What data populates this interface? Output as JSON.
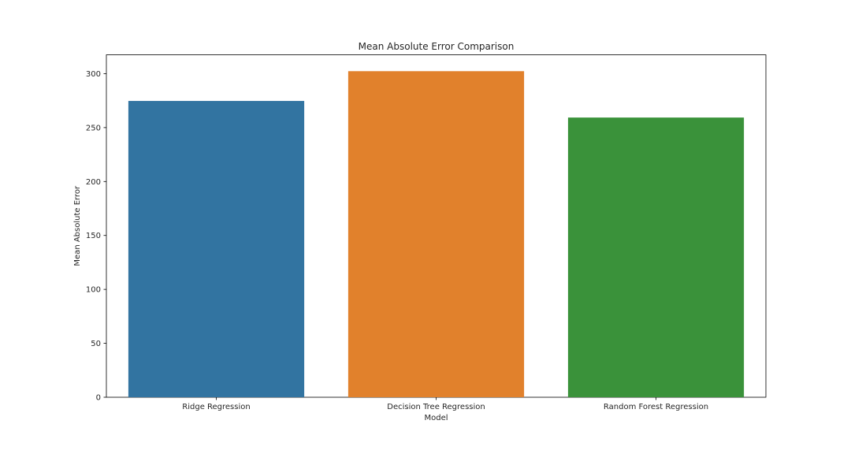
{
  "chart_data": {
    "type": "bar",
    "title": "Mean Absolute Error Comparison",
    "xlabel": "Model",
    "ylabel": "Mean Absolute Error",
    "categories": [
      "Ridge Regression",
      "Decision Tree Regression",
      "Random Forest Regression"
    ],
    "values": [
      274.7,
      302.3,
      259.3
    ],
    "colors": [
      "#3274a1",
      "#e1812c",
      "#3a923a"
    ],
    "ylim": [
      0,
      317.5
    ],
    "yticks": [
      0,
      50,
      100,
      150,
      200,
      250,
      300
    ],
    "grid": false,
    "legend": "none"
  }
}
